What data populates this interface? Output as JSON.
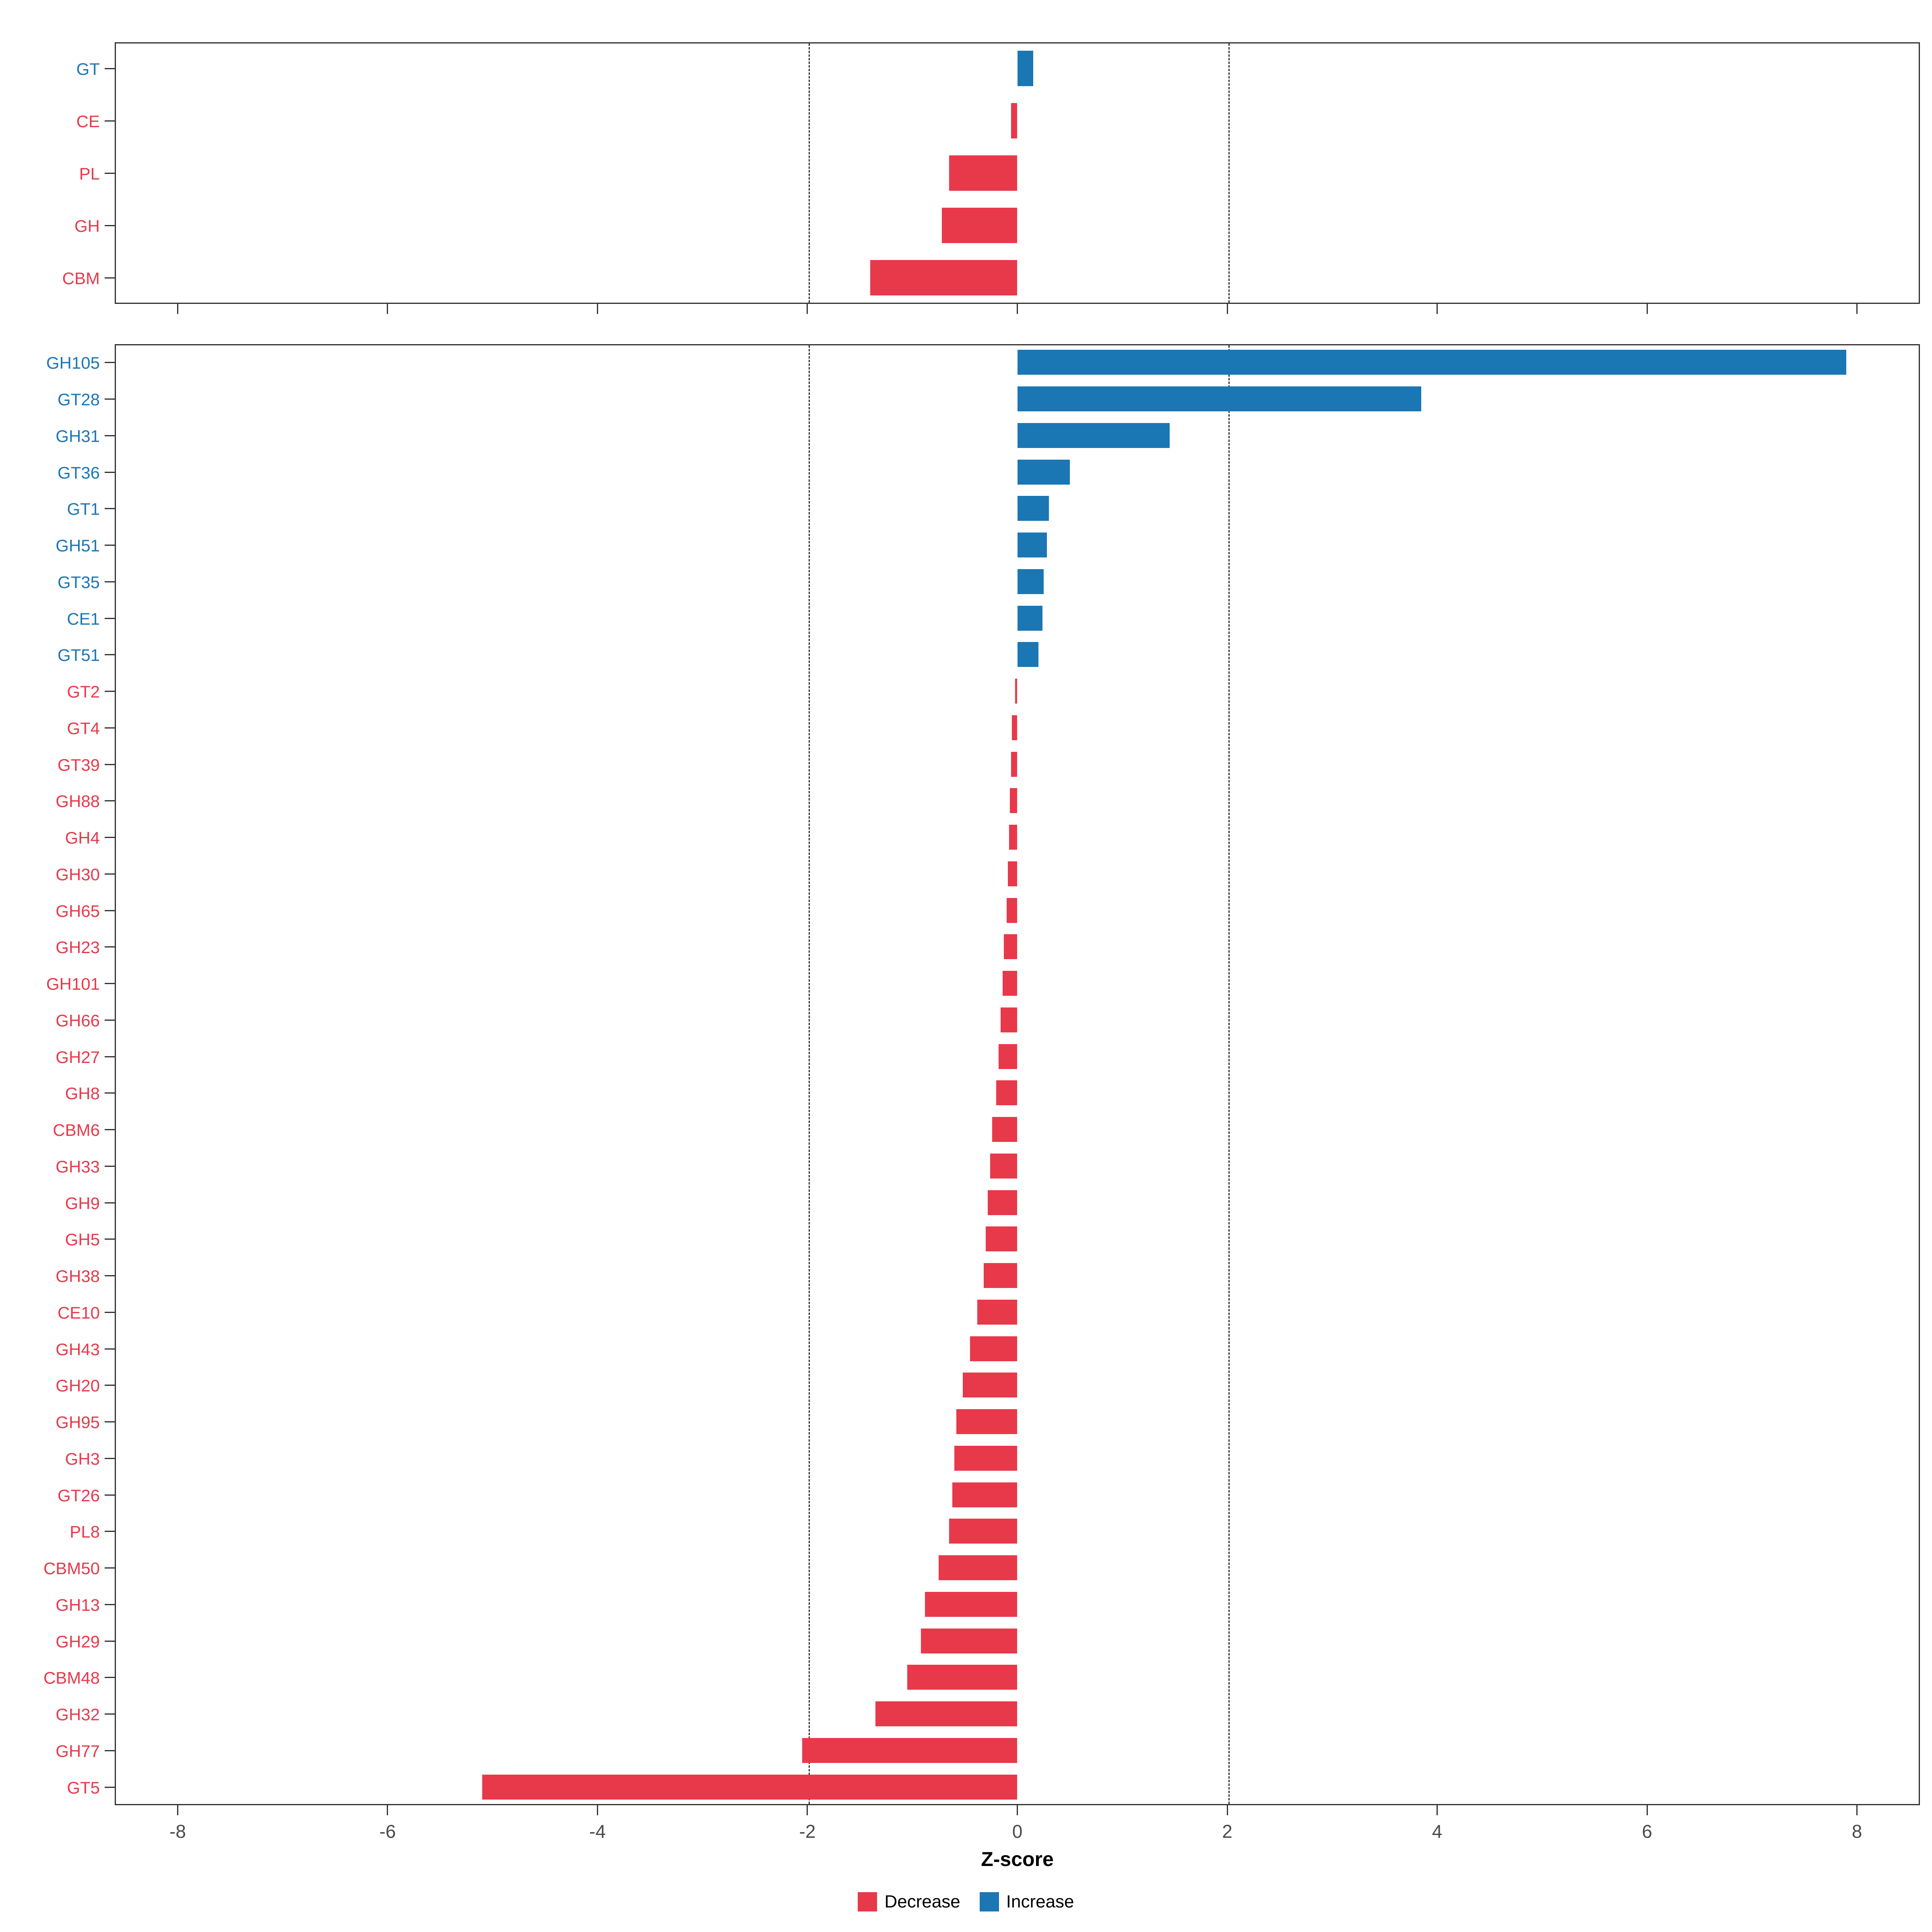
{
  "chart_data": {
    "type": "bar",
    "orientation": "horizontal",
    "title": "",
    "xlabel": "Z-score",
    "ylabel": "",
    "xlim": [
      -8.6,
      8.6
    ],
    "x_ticks": [
      -8,
      -6,
      -4,
      -2,
      0,
      2,
      4,
      6,
      8
    ],
    "dashed_reference_lines": [
      -2,
      2
    ],
    "grid": false,
    "legend_position": "bottom",
    "colors": {
      "decrease": "#E8394A",
      "increase": "#1B76B4"
    },
    "legend_labels": {
      "decrease": "Decrease",
      "increase": "Increase"
    },
    "panels": [
      {
        "name": "cazyme-class-panel",
        "categories": [
          "GT",
          "CE",
          "PL",
          "GH",
          "CBM"
        ],
        "values": [
          0.15,
          -0.06,
          -0.65,
          -0.72,
          -1.4
        ]
      },
      {
        "name": "cazyme-family-panel",
        "categories": [
          "GH105",
          "GT28",
          "GH31",
          "GT36",
          "GT1",
          "GH51",
          "GT35",
          "CE1",
          "GT51",
          "GT2",
          "GT4",
          "GT39",
          "GH88",
          "GH4",
          "GH30",
          "GH65",
          "GH23",
          "GH101",
          "GH66",
          "GH27",
          "GH8",
          "CBM6",
          "GH33",
          "GH9",
          "GH5",
          "GH38",
          "CE10",
          "GH43",
          "GH20",
          "GH95",
          "GH3",
          "GT26",
          "PL8",
          "CBM50",
          "GH13",
          "GH29",
          "CBM48",
          "GH32",
          "GH77",
          "GT5"
        ],
        "values": [
          7.9,
          3.85,
          1.45,
          0.5,
          0.3,
          0.28,
          0.25,
          0.24,
          0.2,
          -0.02,
          -0.05,
          -0.06,
          -0.07,
          -0.08,
          -0.09,
          -0.1,
          -0.13,
          -0.14,
          -0.16,
          -0.18,
          -0.2,
          -0.24,
          -0.26,
          -0.28,
          -0.3,
          -0.32,
          -0.38,
          -0.45,
          -0.52,
          -0.58,
          -0.6,
          -0.62,
          -0.65,
          -0.75,
          -0.88,
          -0.92,
          -1.05,
          -1.35,
          -2.05,
          -5.1
        ]
      }
    ]
  }
}
